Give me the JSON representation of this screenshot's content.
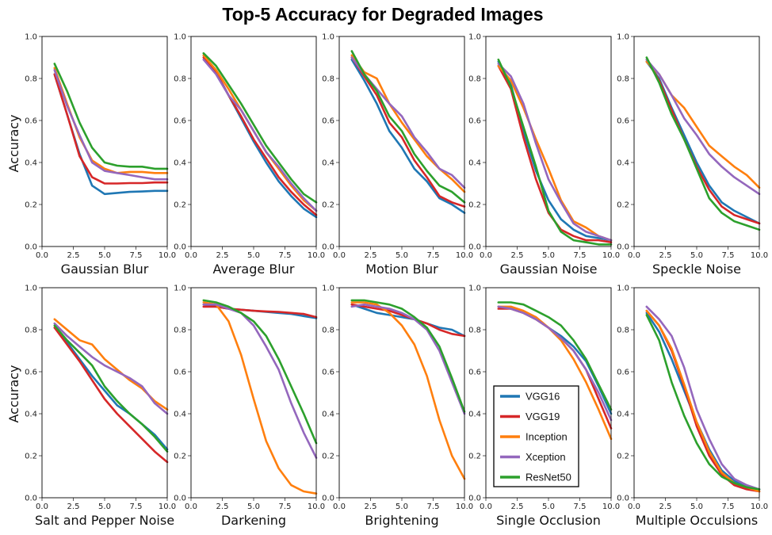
{
  "chart_data": {
    "type": "line",
    "title": "Top-5 Accuracy for Degraded Images",
    "ylabel": "Accuracy",
    "xlim": [
      0,
      10
    ],
    "ylim": [
      0,
      1
    ],
    "x": [
      1,
      2,
      3,
      4,
      5,
      6,
      7,
      8,
      9,
      10
    ],
    "xticks": [
      "0.0",
      "2.5",
      "5.0",
      "7.5",
      "10.0"
    ],
    "yticks": [
      "0.0",
      "0.2",
      "0.4",
      "0.6",
      "0.8",
      "1.0"
    ],
    "series_names": [
      "VGG16",
      "VGG19",
      "Inception",
      "Xception",
      "ResNet50"
    ],
    "colors": {
      "VGG16": "#1f77b4",
      "VGG19": "#d62728",
      "Inception": "#ff7f0e",
      "Xception": "#9467bd",
      "ResNet50": "#2ca02c"
    },
    "legend_location": "lower-left of Single Occlusion panel",
    "subplots": [
      {
        "xlabel": "Gaussian Blur",
        "series": [
          {
            "name": "VGG16",
            "values": [
              0.82,
              0.63,
              0.44,
              0.29,
              0.25,
              0.255,
              0.26,
              0.262,
              0.265,
              0.265
            ]
          },
          {
            "name": "VGG19",
            "values": [
              0.82,
              0.63,
              0.43,
              0.33,
              0.3,
              0.3,
              0.302,
              0.302,
              0.305,
              0.305
            ]
          },
          {
            "name": "Inception",
            "values": [
              0.85,
              0.68,
              0.52,
              0.41,
              0.37,
              0.35,
              0.355,
              0.355,
              0.35,
              0.35
            ]
          },
          {
            "name": "Xception",
            "values": [
              0.84,
              0.67,
              0.53,
              0.4,
              0.36,
              0.35,
              0.34,
              0.33,
              0.32,
              0.32
            ]
          },
          {
            "name": "ResNet50",
            "values": [
              0.87,
              0.74,
              0.59,
              0.47,
              0.4,
              0.385,
              0.38,
              0.38,
              0.37,
              0.37
            ]
          }
        ]
      },
      {
        "xlabel": "Average Blur",
        "series": [
          {
            "name": "VGG16",
            "values": [
              0.91,
              0.83,
              0.72,
              0.61,
              0.5,
              0.4,
              0.31,
              0.24,
              0.18,
              0.14
            ]
          },
          {
            "name": "VGG19",
            "values": [
              0.9,
              0.83,
              0.72,
              0.62,
              0.51,
              0.42,
              0.33,
              0.26,
              0.2,
              0.15
            ]
          },
          {
            "name": "Inception",
            "values": [
              0.91,
              0.84,
              0.75,
              0.65,
              0.55,
              0.45,
              0.37,
              0.29,
              0.22,
              0.17
            ]
          },
          {
            "name": "Xception",
            "values": [
              0.89,
              0.82,
              0.72,
              0.65,
              0.55,
              0.45,
              0.38,
              0.3,
              0.23,
              0.17
            ]
          },
          {
            "name": "ResNet50",
            "values": [
              0.92,
              0.86,
              0.77,
              0.68,
              0.58,
              0.48,
              0.4,
              0.32,
              0.25,
              0.21
            ]
          }
        ]
      },
      {
        "xlabel": "Motion Blur",
        "series": [
          {
            "name": "VGG16",
            "values": [
              0.89,
              0.79,
              0.68,
              0.55,
              0.47,
              0.37,
              0.31,
              0.23,
              0.2,
              0.16
            ]
          },
          {
            "name": "VGG19",
            "values": [
              0.9,
              0.81,
              0.72,
              0.59,
              0.52,
              0.41,
              0.33,
              0.24,
              0.21,
              0.19
            ]
          },
          {
            "name": "Inception",
            "values": [
              0.91,
              0.83,
              0.8,
              0.68,
              0.59,
              0.51,
              0.43,
              0.37,
              0.32,
              0.26
            ]
          },
          {
            "name": "Xception",
            "values": [
              0.9,
              0.82,
              0.75,
              0.68,
              0.62,
              0.52,
              0.45,
              0.37,
              0.34,
              0.28
            ]
          },
          {
            "name": "ResNet50",
            "values": [
              0.93,
              0.82,
              0.74,
              0.62,
              0.55,
              0.44,
              0.36,
              0.29,
              0.26,
              0.21
            ]
          }
        ]
      },
      {
        "xlabel": "Gaussian Noise",
        "series": [
          {
            "name": "VGG16",
            "values": [
              0.88,
              0.77,
              0.55,
              0.36,
              0.22,
              0.13,
              0.08,
              0.05,
              0.04,
              0.03
            ]
          },
          {
            "name": "VGG19",
            "values": [
              0.86,
              0.75,
              0.52,
              0.32,
              0.16,
              0.08,
              0.05,
              0.03,
              0.03,
              0.02
            ]
          },
          {
            "name": "Inception",
            "values": [
              0.86,
              0.79,
              0.66,
              0.51,
              0.37,
              0.22,
              0.12,
              0.09,
              0.05,
              0.03
            ]
          },
          {
            "name": "Xception",
            "values": [
              0.87,
              0.81,
              0.68,
              0.49,
              0.32,
              0.21,
              0.11,
              0.07,
              0.05,
              0.03
            ]
          },
          {
            "name": "ResNet50",
            "values": [
              0.89,
              0.76,
              0.57,
              0.38,
              0.17,
              0.07,
              0.03,
              0.02,
              0.01,
              0.01
            ]
          }
        ]
      },
      {
        "xlabel": "Speckle Noise",
        "series": [
          {
            "name": "VGG16",
            "values": [
              0.88,
              0.8,
              0.66,
              0.53,
              0.4,
              0.29,
              0.21,
              0.17,
              0.14,
              0.11
            ]
          },
          {
            "name": "VGG19",
            "values": [
              0.89,
              0.79,
              0.65,
              0.51,
              0.38,
              0.27,
              0.19,
              0.15,
              0.13,
              0.11
            ]
          },
          {
            "name": "Inception",
            "values": [
              0.88,
              0.82,
              0.72,
              0.66,
              0.57,
              0.48,
              0.43,
              0.38,
              0.34,
              0.28
            ]
          },
          {
            "name": "Xception",
            "values": [
              0.89,
              0.82,
              0.72,
              0.61,
              0.53,
              0.44,
              0.38,
              0.33,
              0.29,
              0.25
            ]
          },
          {
            "name": "ResNet50",
            "values": [
              0.9,
              0.78,
              0.63,
              0.51,
              0.37,
              0.23,
              0.16,
              0.12,
              0.1,
              0.08
            ]
          }
        ]
      },
      {
        "xlabel": "Salt and Pepper Noise",
        "series": [
          {
            "name": "VGG16",
            "values": [
              0.81,
              0.74,
              0.66,
              0.58,
              0.51,
              0.44,
              0.4,
              0.35,
              0.3,
              0.23
            ]
          },
          {
            "name": "VGG19",
            "values": [
              0.81,
              0.73,
              0.65,
              0.56,
              0.47,
              0.4,
              0.34,
              0.28,
              0.22,
              0.17
            ]
          },
          {
            "name": "Inception",
            "values": [
              0.85,
              0.8,
              0.75,
              0.73,
              0.66,
              0.61,
              0.56,
              0.52,
              0.46,
              0.42
            ]
          },
          {
            "name": "Xception",
            "values": [
              0.83,
              0.77,
              0.72,
              0.67,
              0.63,
              0.6,
              0.57,
              0.53,
              0.45,
              0.4
            ]
          },
          {
            "name": "ResNet50",
            "values": [
              0.82,
              0.75,
              0.69,
              0.63,
              0.53,
              0.46,
              0.4,
              0.35,
              0.29,
              0.22
            ]
          }
        ]
      },
      {
        "xlabel": "Darkening",
        "series": [
          {
            "name": "VGG16",
            "values": [
              0.92,
              0.91,
              0.9,
              0.895,
              0.89,
              0.885,
              0.88,
              0.875,
              0.865,
              0.855
            ]
          },
          {
            "name": "VGG19",
            "values": [
              0.91,
              0.91,
              0.9,
              0.895,
              0.89,
              0.887,
              0.885,
              0.88,
              0.875,
              0.86
            ]
          },
          {
            "name": "Inception",
            "values": [
              0.93,
              0.92,
              0.84,
              0.68,
              0.47,
              0.27,
              0.14,
              0.06,
              0.03,
              0.02
            ]
          },
          {
            "name": "Xception",
            "values": [
              0.92,
              0.92,
              0.9,
              0.88,
              0.82,
              0.72,
              0.61,
              0.45,
              0.31,
              0.19
            ]
          },
          {
            "name": "ResNet50",
            "values": [
              0.94,
              0.93,
              0.91,
              0.88,
              0.84,
              0.77,
              0.66,
              0.53,
              0.4,
              0.26
            ]
          }
        ]
      },
      {
        "xlabel": "Brightening",
        "series": [
          {
            "name": "VGG16",
            "values": [
              0.92,
              0.9,
              0.88,
              0.87,
              0.86,
              0.85,
              0.83,
              0.81,
              0.8,
              0.77
            ]
          },
          {
            "name": "VGG19",
            "values": [
              0.92,
              0.91,
              0.9,
              0.89,
              0.87,
              0.85,
              0.83,
              0.8,
              0.78,
              0.77
            ]
          },
          {
            "name": "Inception",
            "values": [
              0.93,
              0.93,
              0.92,
              0.88,
              0.82,
              0.73,
              0.58,
              0.37,
              0.2,
              0.09
            ]
          },
          {
            "name": "Xception",
            "values": [
              0.91,
              0.92,
              0.91,
              0.9,
              0.88,
              0.85,
              0.8,
              0.7,
              0.55,
              0.4
            ]
          },
          {
            "name": "ResNet50",
            "values": [
              0.94,
              0.94,
              0.93,
              0.92,
              0.9,
              0.86,
              0.81,
              0.72,
              0.57,
              0.41
            ]
          }
        ]
      },
      {
        "xlabel": "Single Occlusion",
        "series": [
          {
            "name": "VGG16",
            "values": [
              0.91,
              0.9,
              0.88,
              0.85,
              0.81,
              0.77,
              0.72,
              0.65,
              0.53,
              0.4
            ]
          },
          {
            "name": "VGG19",
            "values": [
              0.9,
              0.9,
              0.88,
              0.85,
              0.81,
              0.76,
              0.7,
              0.61,
              0.47,
              0.33
            ]
          },
          {
            "name": "Inception",
            "values": [
              0.91,
              0.91,
              0.89,
              0.86,
              0.81,
              0.75,
              0.66,
              0.55,
              0.42,
              0.28
            ]
          },
          {
            "name": "Xception",
            "values": [
              0.91,
              0.9,
              0.88,
              0.85,
              0.81,
              0.76,
              0.7,
              0.61,
              0.5,
              0.37
            ]
          },
          {
            "name": "ResNet50",
            "values": [
              0.93,
              0.93,
              0.92,
              0.89,
              0.86,
              0.82,
              0.75,
              0.66,
              0.54,
              0.42
            ]
          }
        ]
      },
      {
        "xlabel": "Multiple Occulsions",
        "series": [
          {
            "name": "VGG16",
            "values": [
              0.88,
              0.79,
              0.66,
              0.51,
              0.36,
              0.23,
              0.13,
              0.08,
              0.05,
              0.04
            ]
          },
          {
            "name": "VGG19",
            "values": [
              0.89,
              0.82,
              0.7,
              0.53,
              0.34,
              0.2,
              0.11,
              0.06,
              0.04,
              0.03
            ]
          },
          {
            "name": "Inception",
            "values": [
              0.89,
              0.82,
              0.71,
              0.54,
              0.36,
              0.22,
              0.12,
              0.07,
              0.05,
              0.03
            ]
          },
          {
            "name": "Xception",
            "values": [
              0.91,
              0.85,
              0.77,
              0.62,
              0.42,
              0.28,
              0.16,
              0.09,
              0.06,
              0.04
            ]
          },
          {
            "name": "ResNet50",
            "values": [
              0.87,
              0.75,
              0.55,
              0.39,
              0.26,
              0.16,
              0.1,
              0.07,
              0.05,
              0.04
            ]
          }
        ]
      }
    ]
  }
}
